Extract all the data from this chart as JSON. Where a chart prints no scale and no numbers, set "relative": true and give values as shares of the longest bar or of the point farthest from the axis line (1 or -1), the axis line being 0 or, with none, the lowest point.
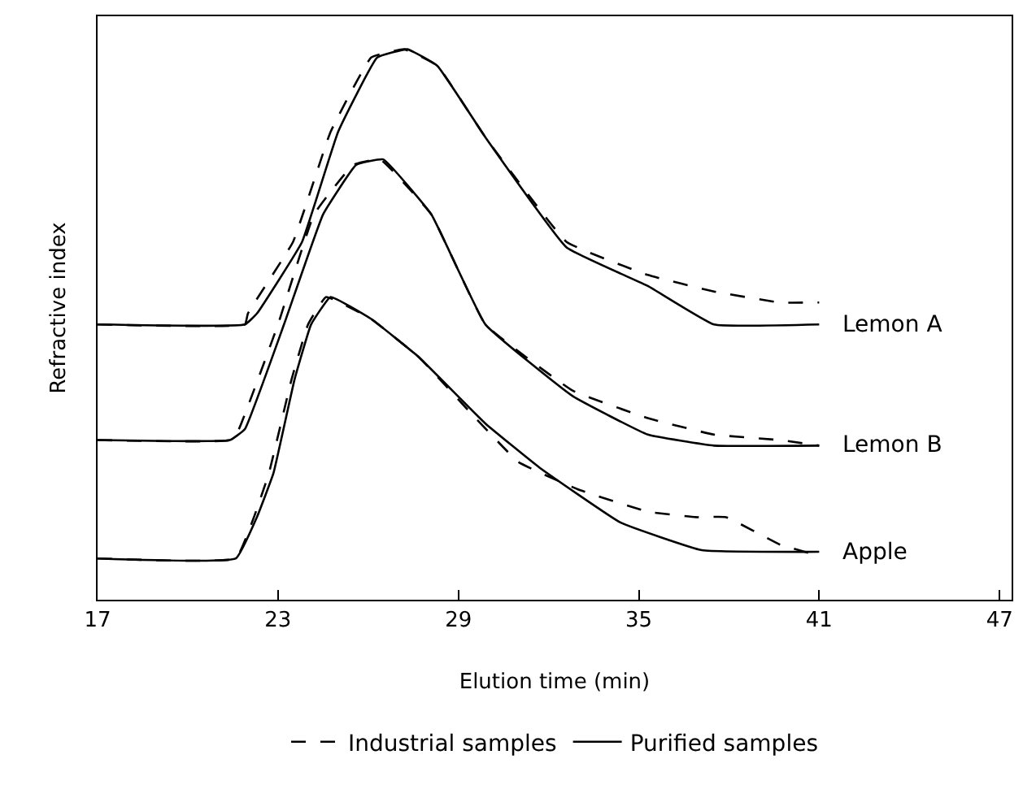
{
  "chart_data": {
    "type": "line",
    "relative": true,
    "xlabel": "Elution time (min)",
    "ylabel": "Refractive index",
    "xlim": [
      17,
      47.4
    ],
    "xticks": [
      17,
      23,
      29,
      35,
      41,
      47
    ],
    "tick_labels": "x",
    "legend": "bottom",
    "marker": "none",
    "series": [
      {
        "name": "Industrial samples",
        "color": "#000000",
        "line_style": "dashed",
        "x": [
          17,
          21.9,
          22.0,
          23.5,
          24.75,
          26.1,
          27.2,
          28.3,
          29.9,
          32.6,
          35.3,
          37.5,
          39.7,
          41
        ],
        "values": [
          0.5,
          0.5,
          0.52,
          0.65,
          0.85,
          0.985,
          1.0,
          0.97,
          0.84,
          0.65,
          0.59,
          0.56,
          0.54,
          0.54
        ]
      },
      {
        "name": "Purified samples",
        "color": "#000000",
        "line_style": "solid",
        "x": [
          17,
          21.9,
          22.3,
          23.8,
          25.0,
          26.3,
          27.3,
          28.3,
          29.9,
          32.6,
          35.3,
          37.5,
          41
        ],
        "values": [
          0.5,
          0.5,
          0.52,
          0.65,
          0.85,
          0.985,
          1.0,
          0.97,
          0.84,
          0.64,
          0.57,
          0.5,
          0.5
        ]
      },
      {
        "color": "#000000",
        "line_style": "dashed",
        "x": [
          17,
          21.4,
          21.7,
          23.0,
          24.2,
          25.5,
          26.4,
          28.1,
          29.9,
          32.8,
          35.3,
          37.5,
          39.7,
          41
        ],
        "values": [
          0.29,
          0.29,
          0.31,
          0.5,
          0.7,
          0.79,
          0.8,
          0.7,
          0.5,
          0.38,
          0.33,
          0.3,
          0.29,
          0.28
        ]
      },
      {
        "color": "#000000",
        "line_style": "solid",
        "x": [
          17,
          21.4,
          21.9,
          23.2,
          24.5,
          25.6,
          26.5,
          28.1,
          29.9,
          32.8,
          35.3,
          37.5,
          41
        ],
        "values": [
          0.29,
          0.29,
          0.31,
          0.5,
          0.7,
          0.79,
          0.8,
          0.7,
          0.5,
          0.37,
          0.3,
          0.28,
          0.28
        ]
      },
      {
        "color": "#000000",
        "line_style": "dashed",
        "x": [
          17,
          21.6,
          22.2,
          22.7,
          23.45,
          24.0,
          24.6,
          26.1,
          27.7,
          29.4,
          31.0,
          33.0,
          35.3,
          36.9,
          37.9,
          39.7,
          41
        ],
        "values": [
          0.075,
          0.075,
          0.15,
          0.23,
          0.4,
          0.5,
          0.55,
          0.51,
          0.44,
          0.34,
          0.25,
          0.2,
          0.16,
          0.15,
          0.15,
          0.1,
          0.08
        ]
      },
      {
        "color": "#000000",
        "line_style": "solid",
        "x": [
          17,
          21.6,
          22.3,
          22.85,
          23.55,
          24.1,
          24.75,
          26.1,
          27.7,
          29.9,
          31.7,
          34.4,
          37.1,
          41
        ],
        "values": [
          0.075,
          0.075,
          0.15,
          0.23,
          0.4,
          0.5,
          0.55,
          0.51,
          0.44,
          0.32,
          0.24,
          0.14,
          0.09,
          0.087
        ]
      }
    ],
    "annotations": [
      "Lemon A",
      "Lemon B",
      "Apple"
    ]
  }
}
